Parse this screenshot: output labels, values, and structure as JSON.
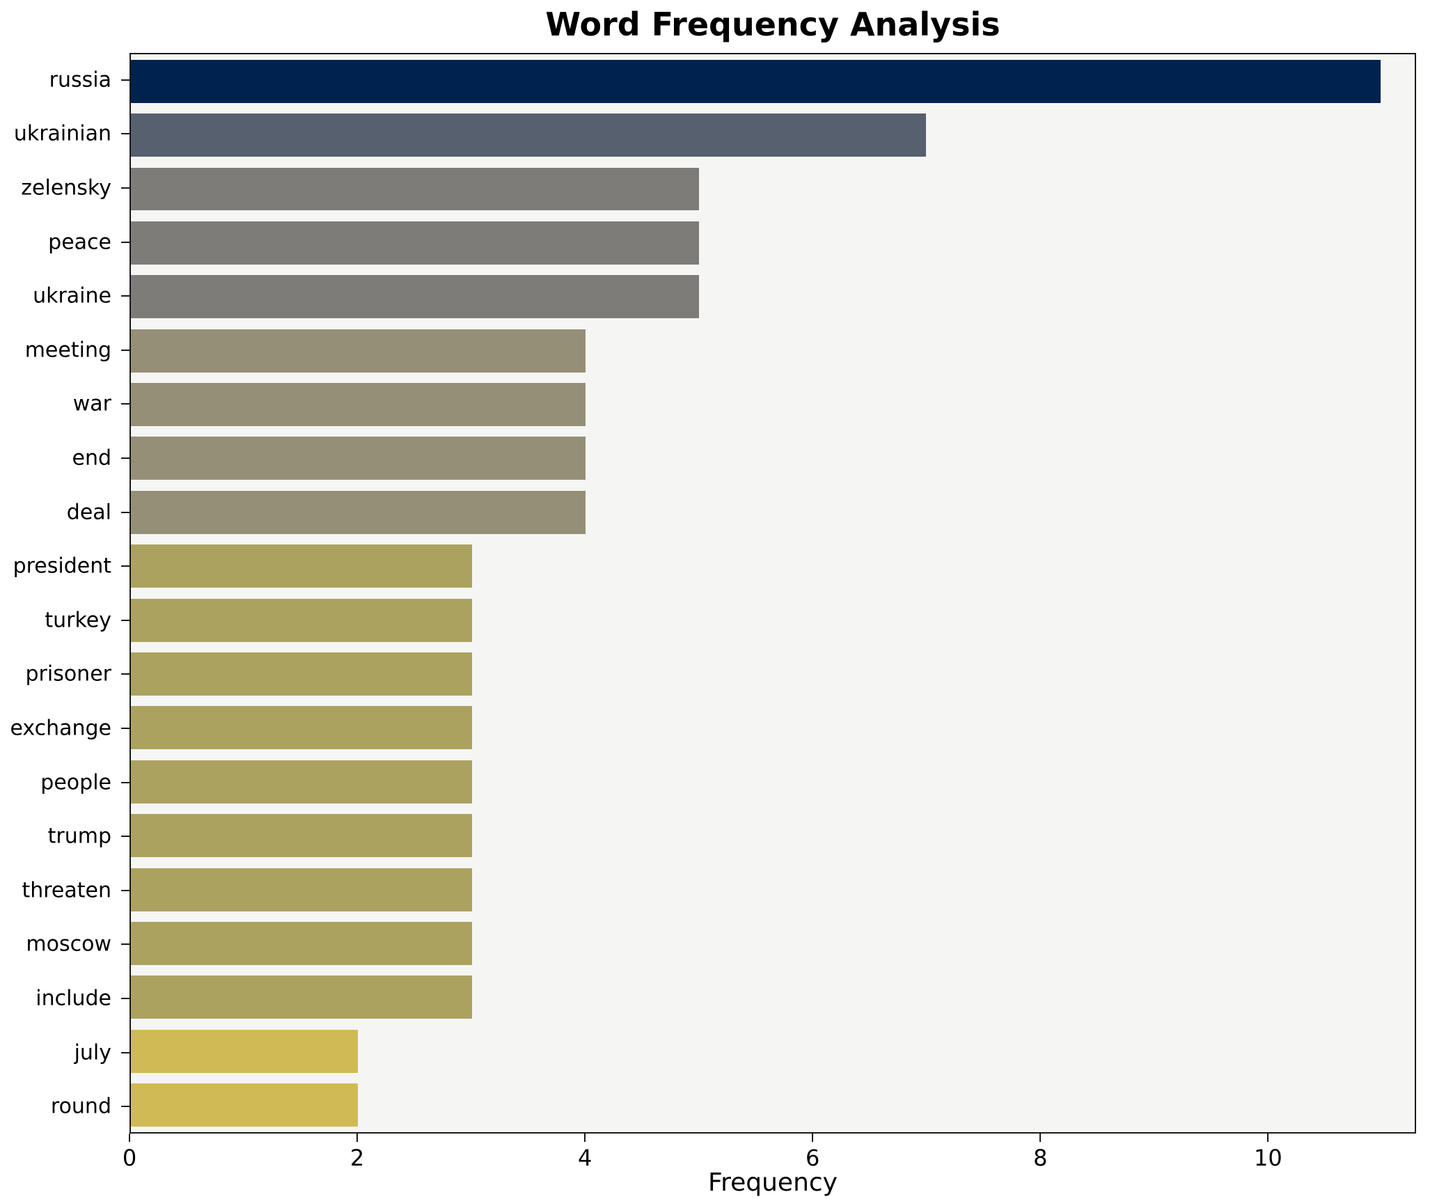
{
  "chart_data": {
    "type": "bar",
    "orientation": "horizontal",
    "title": "Word Frequency Analysis",
    "xlabel": "Frequency",
    "ylabel": "",
    "xlim": [
      0,
      11.3
    ],
    "x_ticks": [
      0,
      2,
      4,
      6,
      8,
      10
    ],
    "grid": false,
    "legend": "none",
    "categories": [
      "russia",
      "ukrainian",
      "zelensky",
      "peace",
      "ukraine",
      "meeting",
      "war",
      "end",
      "deal",
      "president",
      "turkey",
      "prisoner",
      "exchange",
      "people",
      "trump",
      "threaten",
      "moscow",
      "include",
      "july",
      "round"
    ],
    "values": [
      11,
      7,
      5,
      5,
      5,
      4,
      4,
      4,
      4,
      3,
      3,
      3,
      3,
      3,
      3,
      3,
      3,
      3,
      2,
      2
    ],
    "bar_colors": [
      "#00224e",
      "#57606e",
      "#7d7c78",
      "#7d7c78",
      "#7d7c78",
      "#958f78",
      "#958f78",
      "#958f78",
      "#958f78",
      "#aba25f",
      "#aba25f",
      "#aba25f",
      "#aba25f",
      "#aba25f",
      "#aba25f",
      "#aba25f",
      "#aba25f",
      "#aba25f",
      "#d0ba56",
      "#d0ba56"
    ],
    "colors": {
      "plot_background": "#f5f5f3",
      "figure_background": "#ffffff",
      "axis": "#1a1a1a",
      "text": "#000000"
    }
  }
}
